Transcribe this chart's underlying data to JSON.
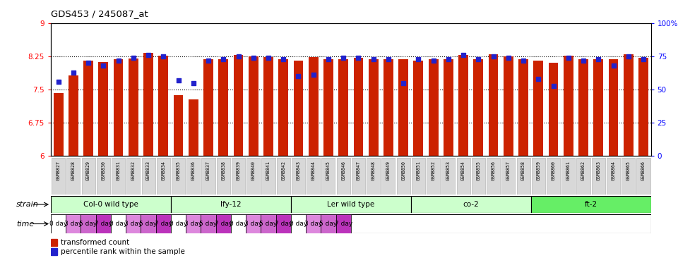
{
  "title": "GDS453 / 245087_at",
  "samples": [
    "GSM8827",
    "GSM8828",
    "GSM8829",
    "GSM8830",
    "GSM8831",
    "GSM8832",
    "GSM8833",
    "GSM8834",
    "GSM8835",
    "GSM8836",
    "GSM8837",
    "GSM8838",
    "GSM8839",
    "GSM8840",
    "GSM8841",
    "GSM8842",
    "GSM8843",
    "GSM8844",
    "GSM8845",
    "GSM8846",
    "GSM8847",
    "GSM8848",
    "GSM8849",
    "GSM8850",
    "GSM8851",
    "GSM8852",
    "GSM8853",
    "GSM8854",
    "GSM8855",
    "GSM8856",
    "GSM8857",
    "GSM8858",
    "GSM8859",
    "GSM8860",
    "GSM8861",
    "GSM8862",
    "GSM8863",
    "GSM8864",
    "GSM8865",
    "GSM8866"
  ],
  "red_values": [
    7.42,
    7.82,
    8.15,
    8.12,
    8.18,
    8.2,
    8.33,
    8.27,
    7.37,
    7.28,
    8.18,
    8.18,
    8.28,
    8.25,
    8.24,
    8.18,
    8.15,
    8.23,
    8.18,
    8.18,
    8.22,
    8.18,
    8.18,
    8.18,
    8.16,
    8.18,
    8.18,
    8.28,
    8.18,
    8.3,
    8.25,
    8.18,
    8.15,
    8.1,
    8.27,
    8.18,
    8.18,
    8.18,
    8.3,
    8.22
  ],
  "blue_values": [
    56,
    63,
    70,
    68,
    72,
    74,
    76,
    75,
    57,
    55,
    72,
    73,
    75,
    74,
    74,
    73,
    60,
    61,
    73,
    74,
    74,
    73,
    73,
    55,
    73,
    72,
    73,
    76,
    73,
    75,
    74,
    72,
    58,
    53,
    74,
    72,
    73,
    68,
    75,
    73
  ],
  "strains": [
    {
      "label": "Col-0 wild type",
      "start": 0,
      "end": 8,
      "color": "#ccffcc"
    },
    {
      "label": "lfy-12",
      "start": 8,
      "end": 16,
      "color": "#ccffcc"
    },
    {
      "label": "Ler wild type",
      "start": 16,
      "end": 24,
      "color": "#ccffcc"
    },
    {
      "label": "co-2",
      "start": 24,
      "end": 32,
      "color": "#ccffcc"
    },
    {
      "label": "ft-2",
      "start": 32,
      "end": 40,
      "color": "#66ee66"
    }
  ],
  "time_labels": [
    "0 day",
    "3 day",
    "5 day",
    "7 day"
  ],
  "time_colors": [
    "#ffffff",
    "#dd88dd",
    "#cc66cc",
    "#bb33bb"
  ],
  "ylim_left": [
    6,
    9
  ],
  "ylim_right": [
    0,
    100
  ],
  "yticks_left": [
    6,
    6.75,
    7.5,
    8.25,
    9
  ],
  "yticks_right": [
    0,
    25,
    50,
    75,
    100
  ],
  "dotted_lines": [
    6.75,
    7.5,
    8.25
  ],
  "bar_color": "#cc2200",
  "blue_color": "#2222cc",
  "tick_label_bg": "#d8d8d8",
  "legend_red_label": "transformed count",
  "legend_blue_label": "percentile rank within the sample"
}
